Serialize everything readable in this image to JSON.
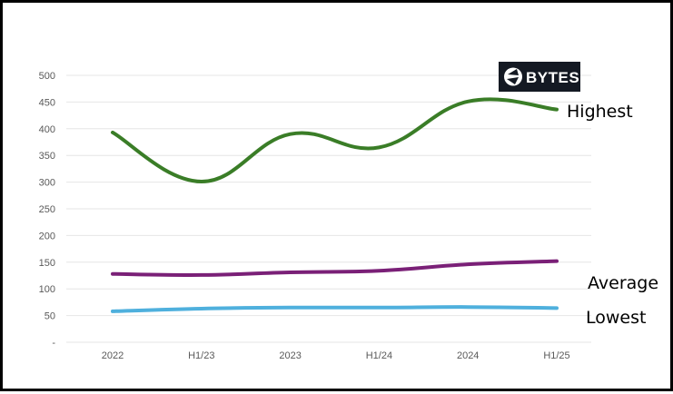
{
  "chart_data": {
    "type": "line",
    "categories": [
      "2022",
      "H1/23",
      "2023",
      "H1/24",
      "2024",
      "H1/25"
    ],
    "y_ticks": [
      "-",
      "50",
      "100",
      "150",
      "200",
      "250",
      "300",
      "350",
      "400",
      "450",
      "500"
    ],
    "ylim": [
      0,
      500
    ],
    "grid": true,
    "series": [
      {
        "name": "Highest",
        "values": [
          393,
          301,
          390,
          365,
          451,
          436
        ],
        "color": "#3a7d27"
      },
      {
        "name": "Average",
        "values": [
          128,
          126,
          131,
          134,
          146,
          152
        ],
        "color": "#7a2077"
      },
      {
        "name": "Lowest",
        "values": [
          58,
          63,
          65,
          65,
          66,
          64
        ],
        "color": "#4fb0dd"
      }
    ]
  },
  "logo": {
    "text": "BYTES",
    "icon": "bytes-logo-icon"
  }
}
